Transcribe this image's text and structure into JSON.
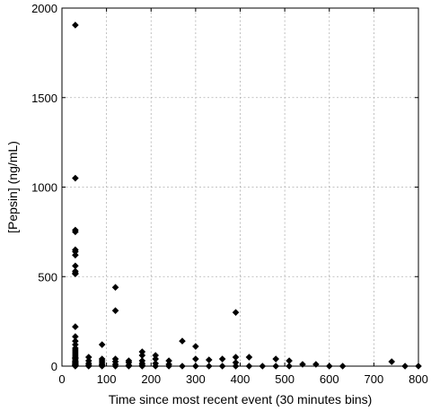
{
  "chart_data": {
    "type": "scatter",
    "title": "",
    "xlabel": "Time since most recent event (30 minutes bins)",
    "ylabel": "[Pepsin] (ng/mL)",
    "xlim": [
      0,
      800
    ],
    "ylim": [
      0,
      2000
    ],
    "xticks": [
      "0",
      "100",
      "200",
      "300",
      "400",
      "500",
      "600",
      "700",
      "800"
    ],
    "yticks": [
      "0",
      "500",
      "1000",
      "1500",
      "2000"
    ],
    "grid": true,
    "marker": "diamond",
    "color": "#000000",
    "series": [
      {
        "x": [
          30,
          30,
          30,
          30,
          30,
          30,
          30,
          30,
          30,
          30,
          30,
          30,
          30,
          30,
          30,
          30,
          30,
          30,
          30,
          30,
          30,
          30,
          30,
          30,
          30,
          30,
          30,
          30,
          30,
          30,
          30,
          30,
          30,
          30,
          60,
          60,
          60,
          60,
          60,
          90,
          90,
          90,
          90,
          90,
          90,
          90,
          120,
          120,
          120,
          120,
          120,
          120,
          150,
          150,
          150,
          150,
          180,
          180,
          180,
          180,
          180,
          180,
          210,
          210,
          210,
          210,
          240,
          240,
          240,
          270,
          270,
          300,
          300,
          300,
          330,
          330,
          360,
          360,
          390,
          390,
          390,
          390,
          420,
          420,
          450,
          480,
          480,
          510,
          510,
          540,
          570,
          600,
          630,
          740,
          770,
          800
        ],
        "y": [
          1905,
          1050,
          760,
          750,
          650,
          640,
          620,
          560,
          530,
          520,
          515,
          220,
          165,
          140,
          120,
          100,
          90,
          80,
          70,
          60,
          50,
          45,
          40,
          30,
          25,
          20,
          15,
          10,
          8,
          5,
          3,
          2,
          1,
          0,
          50,
          30,
          15,
          5,
          0,
          120,
          40,
          30,
          20,
          10,
          5,
          0,
          440,
          310,
          40,
          25,
          10,
          0,
          30,
          20,
          5,
          0,
          80,
          60,
          30,
          15,
          5,
          0,
          60,
          40,
          15,
          0,
          30,
          10,
          0,
          140,
          0,
          110,
          40,
          0,
          35,
          0,
          40,
          0,
          300,
          50,
          20,
          0,
          50,
          0,
          0,
          40,
          0,
          30,
          0,
          10,
          10,
          0,
          0,
          25,
          0,
          0
        ]
      }
    ]
  }
}
